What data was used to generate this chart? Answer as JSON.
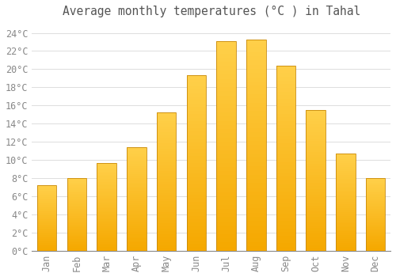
{
  "title": "Average monthly temperatures (°C ) in Tahal",
  "months": [
    "Jan",
    "Feb",
    "Mar",
    "Apr",
    "May",
    "Jun",
    "Jul",
    "Aug",
    "Sep",
    "Oct",
    "Nov",
    "Dec"
  ],
  "temperatures": [
    7.2,
    8.0,
    9.7,
    11.4,
    15.2,
    19.3,
    23.1,
    23.3,
    20.4,
    15.5,
    10.7,
    8.0
  ],
  "bar_color_top": "#FFD04A",
  "bar_color_bottom": "#F5A800",
  "bar_edge_color": "#C8890A",
  "background_color": "#FFFFFF",
  "grid_color": "#DDDDDD",
  "text_color": "#888888",
  "title_color": "#555555",
  "ylim": [
    0,
    25
  ],
  "ytick_step": 2,
  "title_fontsize": 10.5,
  "tick_fontsize": 8.5,
  "bar_width": 0.65
}
